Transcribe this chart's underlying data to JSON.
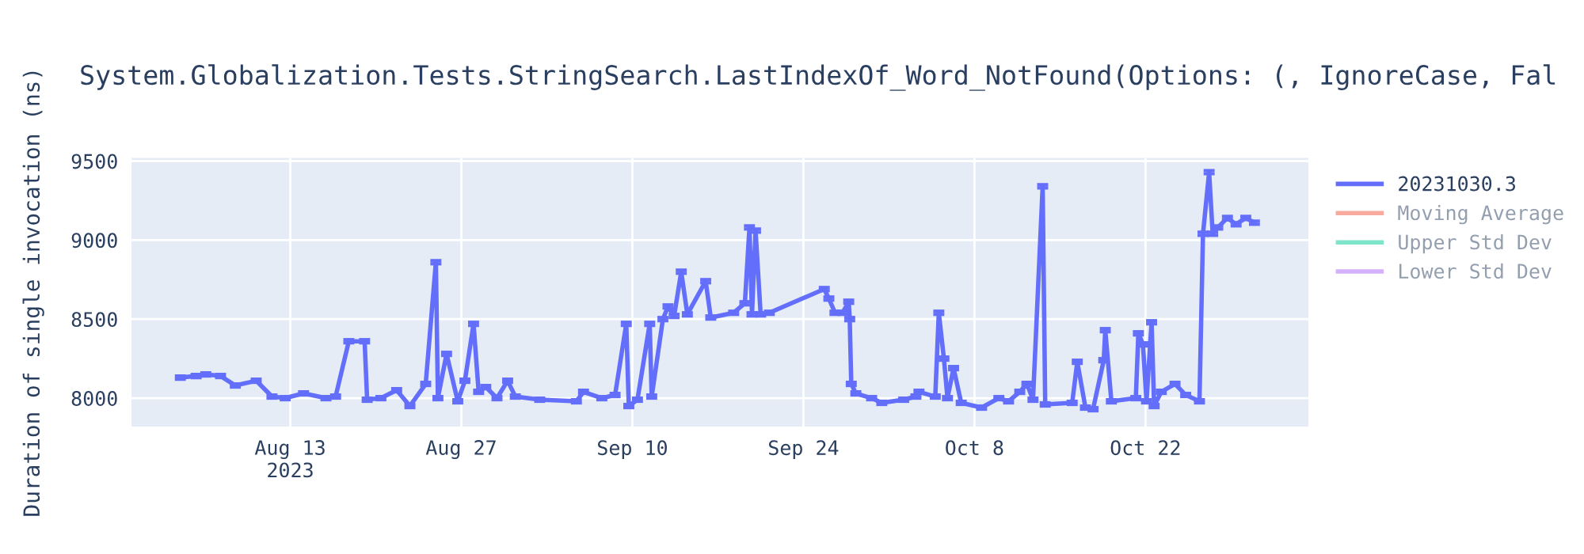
{
  "chart_data": {
    "type": "line",
    "title": "System.Globalization.Tests.StringSearch.LastIndexOf_Word_NotFound(Options: (, IgnoreCase, Fal",
    "ylabel": "Duration of single invocation (ns)",
    "x": [
      "2023-08-04T00:00",
      "2023-08-05T07:00",
      "2023-08-06T02:00",
      "2023-08-07T07:00",
      "2023-08-08T12:00",
      "2023-08-10T05:00",
      "2023-08-11T12:00",
      "2023-08-12T14:00",
      "2023-08-14T02:00",
      "2023-08-15T22:00",
      "2023-08-16T17:00",
      "2023-08-17T19:00",
      "2023-08-19T02:00",
      "2023-08-19T07:00",
      "2023-08-20T10:00",
      "2023-08-21T17:00",
      "2023-08-22T19:00",
      "2023-08-24T02:00",
      "2023-08-24T22:00",
      "2023-08-25T02:00",
      "2023-08-25T19:00",
      "2023-08-26T17:00",
      "2023-08-27T07:00",
      "2023-08-28T00:00",
      "2023-08-28T10:00",
      "2023-08-29T00:00",
      "2023-08-29T22:00",
      "2023-08-30T19:00",
      "2023-08-31T10:00",
      "2023-09-02T10:00",
      "2023-09-05T10:00",
      "2023-09-06T00:00",
      "2023-09-07T12:00",
      "2023-09-08T14:00",
      "2023-09-09T12:00",
      "2023-09-09T17:00",
      "2023-09-10T10:00",
      "2023-09-11T10:00",
      "2023-09-11T14:00",
      "2023-09-12T12:00",
      "2023-09-12T22:00",
      "2023-09-13T10:00",
      "2023-09-14T00:00",
      "2023-09-14T12:00",
      "2023-09-16T00:00",
      "2023-09-16T10:00",
      "2023-09-18T07:00",
      "2023-09-19T05:00",
      "2023-09-19T14:00",
      "2023-09-19T19:00",
      "2023-09-20T02:00",
      "2023-09-20T12:00",
      "2023-09-21T05:00",
      "2023-09-25T17:00",
      "2023-09-26T02:00",
      "2023-09-26T14:00",
      "2023-09-27T05:00",
      "2023-09-27T17:00",
      "2023-09-27T19:00",
      "2023-09-27T22:00",
      "2023-09-28T07:00",
      "2023-09-29T14:00",
      "2023-09-30T10:00",
      "2023-10-02T05:00",
      "2023-10-03T05:00",
      "2023-10-03T11:00",
      "2023-10-04T19:00",
      "2023-10-05T02:00",
      "2023-10-05T12:00",
      "2023-10-05T19:00",
      "2023-10-06T07:00",
      "2023-10-06T22:00",
      "2023-10-08T14:00",
      "2023-10-10T00:00",
      "2023-10-10T19:00",
      "2023-10-11T17:00",
      "2023-10-12T07:00",
      "2023-10-12T19:00",
      "2023-10-13T14:00",
      "2023-10-13T19:00",
      "2023-10-16T00:00",
      "2023-10-16T10:00",
      "2023-10-17T02:00",
      "2023-10-17T17:00",
      "2023-10-18T14:00",
      "2023-10-18T17:00",
      "2023-10-19T05:00",
      "2023-10-21T05:00",
      "2023-10-21T10:00",
      "2023-10-21T19:00",
      "2023-10-22T02:00",
      "2023-10-22T12:00",
      "2023-10-22T17:00",
      "2023-10-23T07:00",
      "2023-10-24T10:00",
      "2023-10-25T07:00",
      "2023-10-26T10:00",
      "2023-10-26T17:00",
      "2023-10-27T05:00",
      "2023-10-27T12:00",
      "2023-10-27T22:00",
      "2023-10-28T17:00",
      "2023-10-29T10:00",
      "2023-10-30T05:00",
      "2023-10-30T22:00"
    ],
    "series": [
      {
        "name": "20231030.3",
        "color": "#636efa",
        "values": [
          8130,
          8140,
          8150,
          8140,
          8080,
          8110,
          8010,
          8000,
          8030,
          8000,
          8010,
          8360,
          8360,
          7990,
          8000,
          8050,
          7950,
          8090,
          8860,
          8000,
          8280,
          7980,
          8110,
          8470,
          8040,
          8070,
          8000,
          8110,
          8010,
          7990,
          7980,
          8040,
          8000,
          8020,
          8470,
          7950,
          7990,
          8470,
          8010,
          8500,
          8580,
          8520,
          8800,
          8530,
          8740,
          8510,
          8540,
          8600,
          9080,
          8530,
          9060,
          8530,
          8540,
          8690,
          8630,
          8540,
          8540,
          8610,
          8500,
          8090,
          8030,
          8000,
          7970,
          7990,
          8010,
          8040,
          8010,
          8540,
          8250,
          8000,
          8190,
          7970,
          7940,
          8000,
          7980,
          8040,
          8090,
          7990,
          9340,
          7960,
          7970,
          8230,
          7940,
          7930,
          8240,
          8430,
          7980,
          8000,
          8410,
          8340,
          7980,
          8480,
          7950,
          8040,
          8090,
          8020,
          7980,
          9040,
          9430,
          9040,
          9080,
          9140,
          9100,
          9140,
          9110
        ],
        "errors": [
          10,
          10,
          10,
          10,
          10,
          10,
          10,
          10,
          10,
          10,
          10,
          10,
          10,
          10,
          10,
          10,
          10,
          10,
          10,
          10,
          10,
          10,
          10,
          10,
          10,
          10,
          10,
          10,
          10,
          10,
          10,
          10,
          10,
          10,
          10,
          10,
          10,
          10,
          10,
          10,
          10,
          10,
          10,
          10,
          10,
          10,
          10,
          10,
          10,
          10,
          10,
          10,
          10,
          10,
          10,
          10,
          10,
          10,
          10,
          10,
          10,
          10,
          10,
          10,
          10,
          10,
          10,
          10,
          10,
          10,
          10,
          10,
          10,
          10,
          10,
          10,
          10,
          10,
          10,
          10,
          10,
          10,
          10,
          10,
          10,
          10,
          10,
          10,
          10,
          10,
          10,
          10,
          10,
          10,
          10,
          10,
          10,
          10,
          10,
          10,
          10,
          10,
          10,
          10,
          10
        ]
      },
      {
        "name": "Moving Average",
        "color": "#ef553b",
        "values": [
          null,
          null,
          null,
          null,
          null,
          null,
          null,
          null,
          null,
          null,
          null,
          null,
          null,
          null,
          null,
          null,
          null,
          null,
          null,
          null,
          null,
          null,
          null,
          null,
          null,
          null,
          null,
          null,
          null,
          null,
          null,
          null,
          null,
          null,
          null,
          null,
          null,
          null,
          null,
          null,
          null,
          null,
          null,
          null,
          null,
          null,
          null,
          null,
          null,
          null,
          null,
          null,
          null,
          null,
          null,
          null,
          null,
          null,
          null,
          null,
          null,
          null,
          null,
          null,
          null,
          null,
          null,
          null,
          null,
          null,
          null,
          null,
          null,
          null,
          null,
          null,
          null,
          null,
          null,
          null,
          null,
          null,
          null,
          null,
          null,
          null,
          null,
          null,
          null,
          null,
          null,
          null,
          null,
          null,
          null,
          null,
          null,
          null,
          null,
          null,
          null,
          null,
          null,
          null,
          null
        ]
      },
      {
        "name": "Upper Std Dev",
        "color": "#00cc96",
        "values": [
          null,
          null,
          null,
          null,
          null,
          null,
          null,
          null,
          null,
          null,
          null,
          null,
          null,
          null,
          null,
          null,
          null,
          null,
          null,
          null,
          null,
          null,
          null,
          null,
          null,
          null,
          null,
          null,
          null,
          null,
          null,
          null,
          null,
          null,
          null,
          null,
          null,
          null,
          null,
          null,
          null,
          null,
          null,
          null,
          null,
          null,
          null,
          null,
          null,
          null,
          null,
          null,
          null,
          null,
          null,
          null,
          null,
          null,
          null,
          null,
          null,
          null,
          null,
          null,
          null,
          null,
          null,
          null,
          null,
          null,
          null,
          null,
          null,
          null,
          null,
          null,
          null,
          null,
          null,
          null,
          null,
          null,
          null,
          null,
          null,
          null,
          null,
          null,
          null,
          null,
          null,
          null,
          null,
          null,
          null,
          null,
          null,
          null,
          null,
          null,
          null,
          null,
          null,
          null,
          null
        ]
      },
      {
        "name": "Lower Std Dev",
        "color": "#ab63fa",
        "values": [
          null,
          null,
          null,
          null,
          null,
          null,
          null,
          null,
          null,
          null,
          null,
          null,
          null,
          null,
          null,
          null,
          null,
          null,
          null,
          null,
          null,
          null,
          null,
          null,
          null,
          null,
          null,
          null,
          null,
          null,
          null,
          null,
          null,
          null,
          null,
          null,
          null,
          null,
          null,
          null,
          null,
          null,
          null,
          null,
          null,
          null,
          null,
          null,
          null,
          null,
          null,
          null,
          null,
          null,
          null,
          null,
          null,
          null,
          null,
          null,
          null,
          null,
          null,
          null,
          null,
          null,
          null,
          null,
          null,
          null,
          null,
          null,
          null,
          null,
          null,
          null,
          null,
          null,
          null,
          null,
          null,
          null,
          null,
          null,
          null,
          null,
          null,
          null,
          null,
          null,
          null,
          null,
          null,
          null,
          null,
          null,
          null,
          null,
          null,
          null,
          null,
          null,
          null,
          null,
          null
        ]
      }
    ],
    "xlim": [
      "2023-07-31",
      "2023-11-04T08:00"
    ],
    "xticks": [
      {
        "value": "2023-08-13",
        "label": "Aug 13\n2023"
      },
      {
        "value": "2023-08-27",
        "label": "Aug 27"
      },
      {
        "value": "2023-09-10",
        "label": "Sep 10"
      },
      {
        "value": "2023-09-24",
        "label": "Sep 24"
      },
      {
        "value": "2023-10-08",
        "label": "Oct 8"
      },
      {
        "value": "2023-10-22",
        "label": "Oct 22"
      }
    ],
    "ylim": [
      7820,
      9520
    ],
    "yticks": [
      8000,
      8500,
      9000,
      9500
    ],
    "grid": true,
    "legend": "right",
    "marker": "none",
    "line_style": "solid"
  }
}
